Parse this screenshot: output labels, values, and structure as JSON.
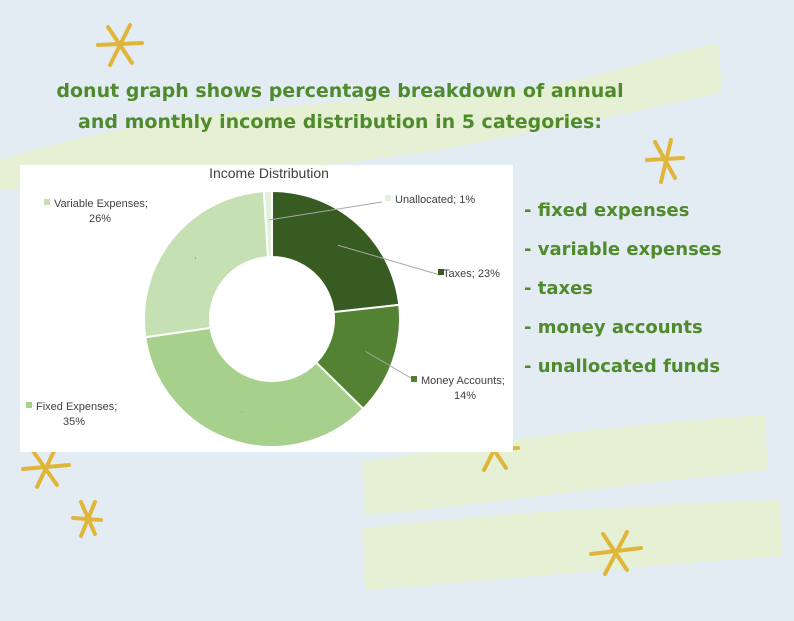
{
  "headline": {
    "line1": "donut graph shows percentage breakdown of annual",
    "line2": "and monthly income distribution in 5 categories:"
  },
  "colors": {
    "headline": "#4f8a2c",
    "background": "#e3ecf3",
    "brush": "#e6f1d0",
    "star": "#e0b63a"
  },
  "chart_data": {
    "type": "donut",
    "title": "Income Distribution",
    "segments": [
      {
        "name": "Taxes",
        "value": 23,
        "label": "Taxes; 23%",
        "color": "#375b21"
      },
      {
        "name": "Money Accounts",
        "value": 14,
        "label": "Money Accounts; 14%",
        "color": "#548233"
      },
      {
        "name": "Fixed Expenses",
        "value": 35,
        "label": "Fixed Expenses; 35%",
        "color": "#a8d08d"
      },
      {
        "name": "Variable Expenses",
        "value": 26,
        "label": "Variable Expenses; 26%",
        "color": "#c5e0b3"
      },
      {
        "name": "Unallocated",
        "value": 1,
        "label": "Unallocated; 1%",
        "color": "#e2efd9"
      }
    ],
    "legend": "none",
    "data_labels": "outside with leader lines"
  },
  "categories_list": [
    "- fixed expenses",
    "- variable expenses",
    "- taxes",
    "- money accounts",
    "- unallocated funds"
  ]
}
